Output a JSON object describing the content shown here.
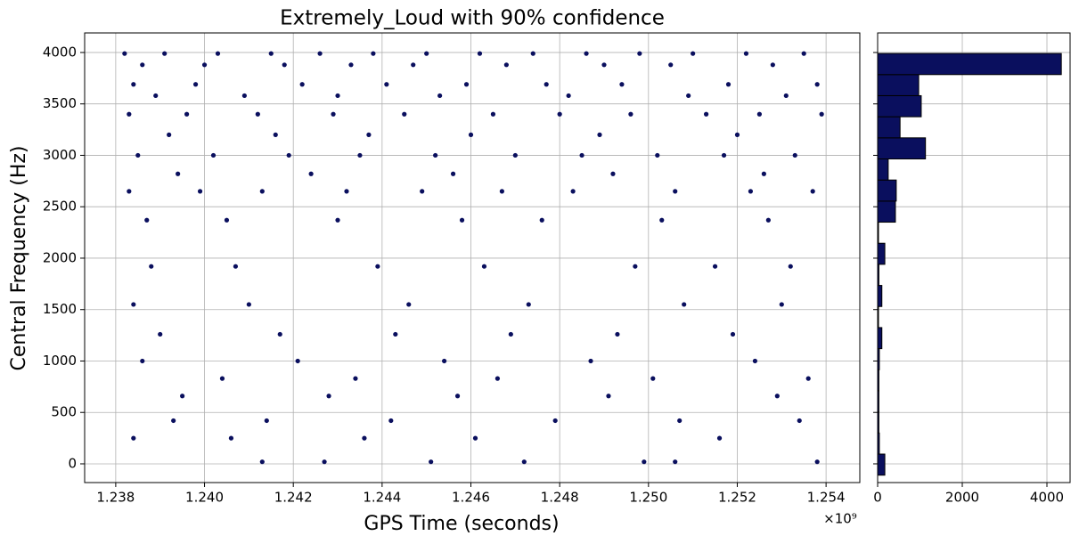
{
  "chart_data": [
    {
      "type": "scatter",
      "title": "Extremely_Loud with 90% confidence",
      "xlabel": "GPS Time (seconds)",
      "ylabel": "Central Frequency (Hz)",
      "x_offset_label": "×10⁹",
      "color": "#0a0f5e",
      "grid": true,
      "xlim": [
        1237300000,
        1254760000
      ],
      "xticks": [
        {
          "value": 1238000000,
          "label": "1.238"
        },
        {
          "value": 1240000000,
          "label": "1.240"
        },
        {
          "value": 1242000000,
          "label": "1.242"
        },
        {
          "value": 1244000000,
          "label": "1.244"
        },
        {
          "value": 1246000000,
          "label": "1.246"
        },
        {
          "value": 1248000000,
          "label": "1.248"
        },
        {
          "value": 1250000000,
          "label": "1.250"
        },
        {
          "value": 1252000000,
          "label": "1.252"
        },
        {
          "value": 1254000000,
          "label": "1.254"
        }
      ],
      "ylim": [
        -182,
        4190
      ],
      "yticks": [
        0,
        500,
        1000,
        1500,
        2000,
        2500,
        3000,
        3500,
        4000
      ],
      "x": [
        1238200000,
        1239100000,
        1240300000,
        1241500000,
        1242600000,
        1243800000,
        1245000000,
        1246200000,
        1247400000,
        1248600000,
        1249800000,
        1251000000,
        1252200000,
        1253500000,
        1238600000,
        1240000000,
        1241800000,
        1243300000,
        1244700000,
        1246800000,
        1249000000,
        1250500000,
        1252800000,
        1238400000,
        1239800000,
        1242200000,
        1244100000,
        1245900000,
        1247700000,
        1249400000,
        1251800000,
        1253800000,
        1238900000,
        1240900000,
        1243000000,
        1245300000,
        1248200000,
        1250900000,
        1253100000,
        1238300000,
        1239600000,
        1241200000,
        1242900000,
        1244500000,
        1246500000,
        1248000000,
        1249600000,
        1251300000,
        1252500000,
        1253900000,
        1239200000,
        1241600000,
        1243700000,
        1246000000,
        1248900000,
        1252000000,
        1238500000,
        1240200000,
        1241900000,
        1243500000,
        1245200000,
        1247000000,
        1248500000,
        1250200000,
        1251700000,
        1253300000,
        1239400000,
        1242400000,
        1245600000,
        1249200000,
        1252600000,
        1238300000,
        1239900000,
        1241300000,
        1243200000,
        1244900000,
        1246700000,
        1248300000,
        1250600000,
        1252300000,
        1253700000,
        1238700000,
        1240500000,
        1243000000,
        1245800000,
        1247600000,
        1250300000,
        1252700000,
        1238800000,
        1240700000,
        1243900000,
        1246300000,
        1249700000,
        1251500000,
        1253200000,
        1238400000,
        1241000000,
        1244600000,
        1247300000,
        1250800000,
        1253000000,
        1239000000,
        1241700000,
        1244300000,
        1246900000,
        1249300000,
        1251900000,
        1238600000,
        1242100000,
        1245400000,
        1248700000,
        1252400000,
        1240400000,
        1243400000,
        1246600000,
        1250100000,
        1253600000,
        1239500000,
        1242800000,
        1245700000,
        1249100000,
        1252900000,
        1239300000,
        1241400000,
        1244200000,
        1247900000,
        1250700000,
        1253400000,
        1238400000,
        1240600000,
        1243600000,
        1246100000,
        1251600000,
        1241300000,
        1242700000,
        1245100000,
        1247200000,
        1249900000,
        1250600000,
        1253800000
      ],
      "values": [
        3990,
        3990,
        3990,
        3990,
        3990,
        3990,
        3990,
        3990,
        3990,
        3990,
        3990,
        3990,
        3990,
        3990,
        3880,
        3880,
        3880,
        3880,
        3880,
        3880,
        3880,
        3880,
        3880,
        3690,
        3690,
        3690,
        3690,
        3690,
        3690,
        3690,
        3690,
        3690,
        3580,
        3580,
        3580,
        3580,
        3580,
        3580,
        3580,
        3400,
        3400,
        3400,
        3400,
        3400,
        3400,
        3400,
        3400,
        3400,
        3400,
        3400,
        3200,
        3200,
        3200,
        3200,
        3200,
        3200,
        3000,
        3000,
        3000,
        3000,
        3000,
        3000,
        3000,
        3000,
        3000,
        3000,
        2820,
        2820,
        2820,
        2820,
        2820,
        2650,
        2650,
        2650,
        2650,
        2650,
        2650,
        2650,
        2650,
        2650,
        2650,
        2370,
        2370,
        2370,
        2370,
        2370,
        2370,
        2370,
        1920,
        1920,
        1920,
        1920,
        1920,
        1920,
        1920,
        1550,
        1550,
        1550,
        1550,
        1550,
        1550,
        1260,
        1260,
        1260,
        1260,
        1260,
        1260,
        1000,
        1000,
        1000,
        1000,
        1000,
        830,
        830,
        830,
        830,
        830,
        660,
        660,
        660,
        660,
        660,
        420,
        420,
        420,
        420,
        420,
        420,
        250,
        250,
        250,
        250,
        250,
        20,
        20,
        20,
        20,
        20,
        20,
        20
      ]
    },
    {
      "type": "histogram",
      "orientation": "horizontal",
      "color": "#0a0f5e",
      "edgecolor": "#000000",
      "grid": true,
      "xlim": [
        0,
        4547
      ],
      "xticks": [
        0,
        2000,
        4000
      ],
      "ylim": [
        -182,
        4190
      ],
      "yticks": [
        0,
        500,
        1000,
        1500,
        2000,
        2500,
        3000,
        3500,
        4000
      ],
      "bins": [
        -110,
        95,
        300,
        505,
        710,
        915,
        1120,
        1325,
        1530,
        1735,
        1940,
        2145,
        2350,
        2555,
        2760,
        2965,
        3170,
        3375,
        3580,
        3785,
        3990
      ],
      "values": [
        170,
        40,
        30,
        30,
        30,
        40,
        100,
        20,
        100,
        30,
        170,
        20,
        420,
        440,
        250,
        1130,
        530,
        1030,
        970,
        4340
      ]
    }
  ]
}
